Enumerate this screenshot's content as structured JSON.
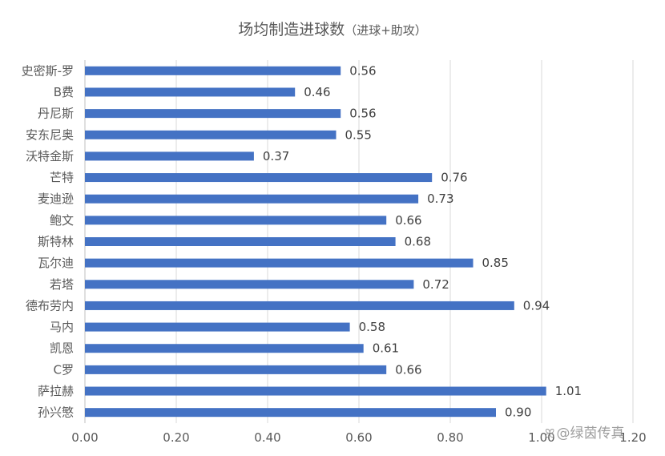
{
  "chart_data": {
    "type": "bar",
    "orientation": "horizontal",
    "title": "场均制造进球数",
    "subtitle": "（进球+助攻）",
    "categories": [
      "史密斯-罗",
      "B费",
      "丹尼斯",
      "安东尼奥",
      "沃特金斯",
      "芒特",
      "麦迪逊",
      "鲍文",
      "斯特林",
      "瓦尔迪",
      "若塔",
      "德布劳内",
      "马内",
      "凯恩",
      "C罗",
      "萨拉赫",
      "孙兴慜"
    ],
    "values": [
      0.56,
      0.46,
      0.56,
      0.55,
      0.37,
      0.76,
      0.73,
      0.66,
      0.68,
      0.85,
      0.72,
      0.94,
      0.58,
      0.61,
      0.66,
      1.01,
      0.9
    ],
    "data_labels": [
      "0.56",
      "0.46",
      "0.56",
      "0.55",
      "0.37",
      "0.76",
      "0.73",
      "0.66",
      "0.68",
      "0.85",
      "0.72",
      "0.94",
      "0.58",
      "0.61",
      "0.66",
      "1.01",
      "0.90"
    ],
    "x_ticks": [
      "0.00",
      "0.20",
      "0.40",
      "0.60",
      "0.80",
      "1.00",
      "1.20"
    ],
    "xlim": [
      0,
      1.2
    ],
    "bar_color": "#4472C4",
    "grid": true,
    "legend": "none"
  },
  "watermark": {
    "icon": "weibo-icon",
    "text": "@绿茵传真"
  }
}
